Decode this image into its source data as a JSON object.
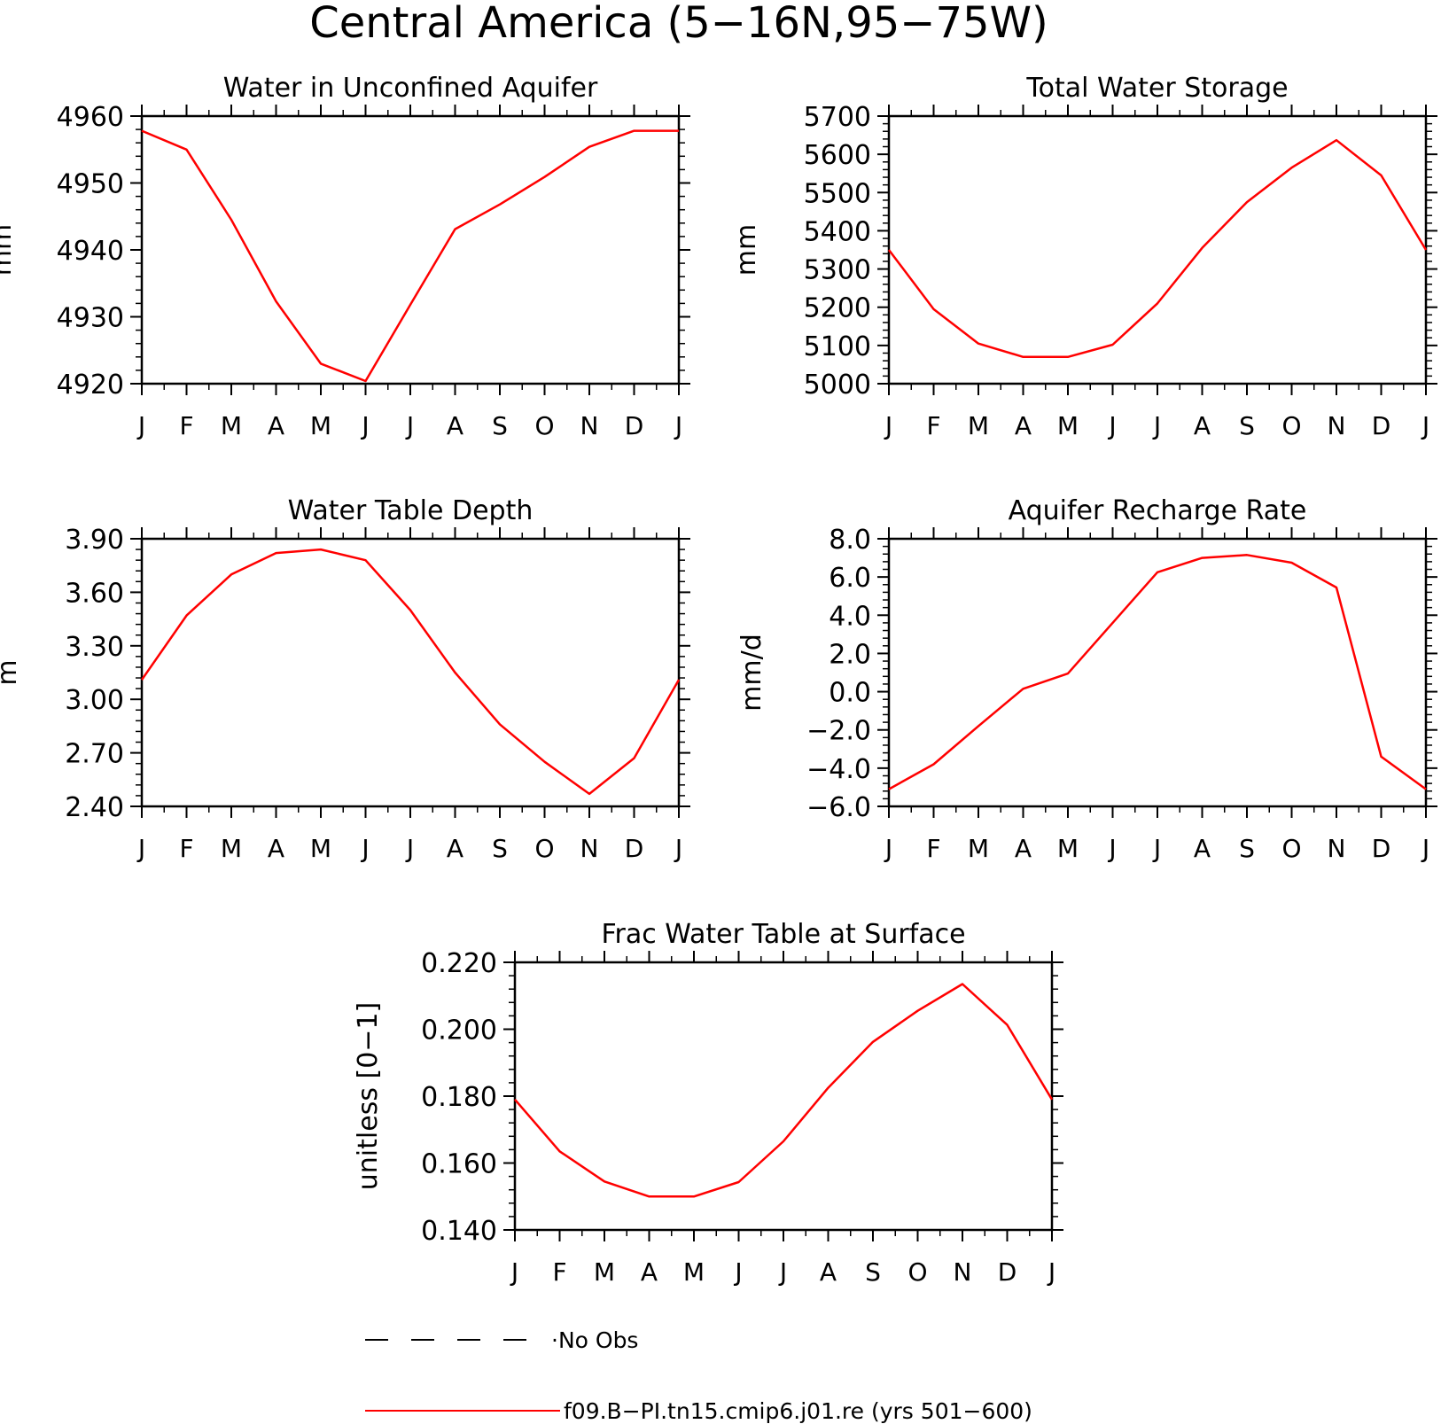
{
  "figure": {
    "title": "Central America (5−16N,95−75W)"
  },
  "legend": {
    "entries": [
      {
        "label": "·No Obs",
        "style": "dashed",
        "color": "#000000"
      },
      {
        "label": "f09.B−PI.tn15.cmip6.j01.re (yrs 501−600)",
        "style": "solid",
        "color": "#ff0000"
      }
    ]
  },
  "chart_data": [
    {
      "type": "line",
      "title": "Water in Unconfined Aquifer",
      "ylabel": "mm",
      "ylim": [
        4920,
        4960
      ],
      "yticks": [
        "4920",
        "4930",
        "4940",
        "4950",
        "4960"
      ],
      "x": [
        "J",
        "F",
        "M",
        "A",
        "M",
        "J",
        "J",
        "A",
        "S",
        "O",
        "N",
        "D",
        "J"
      ],
      "series": [
        {
          "values": [
            4957.8,
            4955.0,
            4944.5,
            4932.3,
            4923.0,
            4920.4,
            4931.8,
            4943.1,
            4946.8,
            4950.9,
            4955.4,
            4957.8,
            4957.8
          ],
          "color": "#ff0000"
        }
      ]
    },
    {
      "type": "line",
      "title": "Total Water Storage",
      "ylabel": "mm",
      "ylim": [
        5000,
        5700
      ],
      "yticks": [
        "5000",
        "5100",
        "5200",
        "5300",
        "5400",
        "5500",
        "5600",
        "5700"
      ],
      "x": [
        "J",
        "F",
        "M",
        "A",
        "M",
        "J",
        "J",
        "A",
        "S",
        "O",
        "N",
        "D",
        "J"
      ],
      "series": [
        {
          "values": [
            5350,
            5195,
            5105,
            5070,
            5070,
            5102,
            5210,
            5355,
            5475,
            5565,
            5637,
            5545,
            5350
          ],
          "color": "#ff0000"
        }
      ]
    },
    {
      "type": "line",
      "title": "Water Table Depth",
      "ylabel": "m",
      "ylim": [
        2.4,
        3.9
      ],
      "yticks": [
        "2.40",
        "2.70",
        "3.00",
        "3.30",
        "3.60",
        "3.90"
      ],
      "x": [
        "J",
        "F",
        "M",
        "A",
        "M",
        "J",
        "J",
        "A",
        "S",
        "O",
        "N",
        "D",
        "J"
      ],
      "series": [
        {
          "values": [
            3.11,
            3.47,
            3.7,
            3.82,
            3.84,
            3.78,
            3.5,
            3.15,
            2.86,
            2.65,
            2.47,
            2.67,
            3.11
          ],
          "color": "#ff0000"
        }
      ]
    },
    {
      "type": "line",
      "title": "Aquifer Recharge Rate",
      "ylabel": "mm/d",
      "ylim": [
        -6.0,
        8.0
      ],
      "yticks": [
        "−6.0",
        "−4.0",
        "−2.0",
        "0.0",
        "2.0",
        "4.0",
        "6.0",
        "8.0"
      ],
      "x": [
        "J",
        "F",
        "M",
        "A",
        "M",
        "J",
        "J",
        "A",
        "S",
        "O",
        "N",
        "D",
        "J"
      ],
      "series": [
        {
          "values": [
            -5.1,
            -3.8,
            -1.8,
            0.15,
            0.95,
            3.6,
            6.25,
            7.0,
            7.15,
            6.75,
            5.45,
            -3.4,
            -5.1
          ],
          "color": "#ff0000"
        }
      ]
    },
    {
      "type": "line",
      "title": "Frac Water Table at Surface",
      "ylabel": "unitless [0−1]",
      "ylim": [
        0.14,
        0.22
      ],
      "yticks": [
        "0.140",
        "0.160",
        "0.180",
        "0.200",
        "0.220"
      ],
      "x": [
        "J",
        "F",
        "M",
        "A",
        "M",
        "J",
        "J",
        "A",
        "S",
        "O",
        "N",
        "D",
        "J"
      ],
      "series": [
        {
          "values": [
            0.179,
            0.1635,
            0.1545,
            0.15,
            0.15,
            0.1543,
            0.1665,
            0.1825,
            0.1962,
            0.2055,
            0.2135,
            0.2013,
            0.179
          ],
          "color": "#ff0000"
        }
      ]
    }
  ]
}
